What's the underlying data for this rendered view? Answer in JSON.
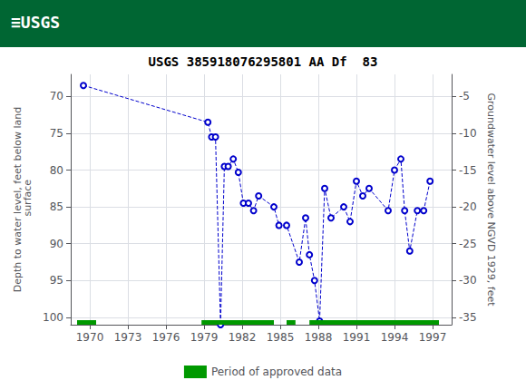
{
  "chart_data": {
    "type": "line",
    "title": "USGS 385918076295801 AA Df  83",
    "ylabel": "Depth to water level, feet below land\n surface",
    "y2label": "Groundwater level above NGVD 1929, feet",
    "annotations": [
      {
        "text": "≡USGS",
        "background_color": "#006633"
      }
    ],
    "x": [
      1969.5,
      1979.3,
      1979.6,
      1979.9,
      1980.3,
      1980.6,
      1980.9,
      1981.3,
      1981.7,
      1982.1,
      1982.5,
      1982.9,
      1983.3,
      1984.5,
      1984.9,
      1985.5,
      1986.5,
      1987.0,
      1987.3,
      1987.7,
      1988.1,
      1988.5,
      1989.0,
      1990.0,
      1990.5,
      1991.0,
      1991.5,
      1992.0,
      1993.5,
      1994.0,
      1994.5,
      1994.8,
      1995.2,
      1995.8,
      1996.3,
      1996.8
    ],
    "series": [
      {
        "color": "#0000CC",
        "line_style": "dashed",
        "marker": "open_circle",
        "values": [
          68.5,
          73.5,
          75.5,
          75.5,
          101.0,
          79.5,
          79.5,
          78.5,
          80.3,
          84.5,
          84.5,
          85.5,
          83.5,
          85.0,
          87.5,
          87.5,
          92.5,
          86.5,
          91.5,
          95.0,
          100.5,
          82.5,
          86.5,
          85.0,
          87.0,
          81.5,
          83.5,
          82.5,
          85.5,
          80.0,
          78.5,
          85.5,
          91.0,
          85.5,
          85.5,
          81.5
        ]
      },
      {
        "name": "Period of approved data",
        "type": "period",
        "color": "#009900",
        "periods": [
          [
            1969.0,
            1970.5
          ],
          [
            1978.8,
            1984.5
          ],
          [
            1985.5,
            1986.2
          ],
          [
            1987.3,
            1997.5
          ]
        ]
      }
    ],
    "xlim": [
      1968.5,
      1998.5
    ],
    "xticks": [
      1970,
      1973,
      1976,
      1979,
      1982,
      1985,
      1988,
      1991,
      1994,
      1997
    ],
    "ylim": [
      101,
      67
    ],
    "yticks": [
      70,
      75,
      80,
      85,
      90,
      95,
      100
    ],
    "y2lim": [
      -36,
      -2
    ],
    "y2ticks": [
      -5,
      -10,
      -15,
      -20,
      -25,
      -30,
      -35
    ],
    "grid": true,
    "legend": "bottom"
  }
}
